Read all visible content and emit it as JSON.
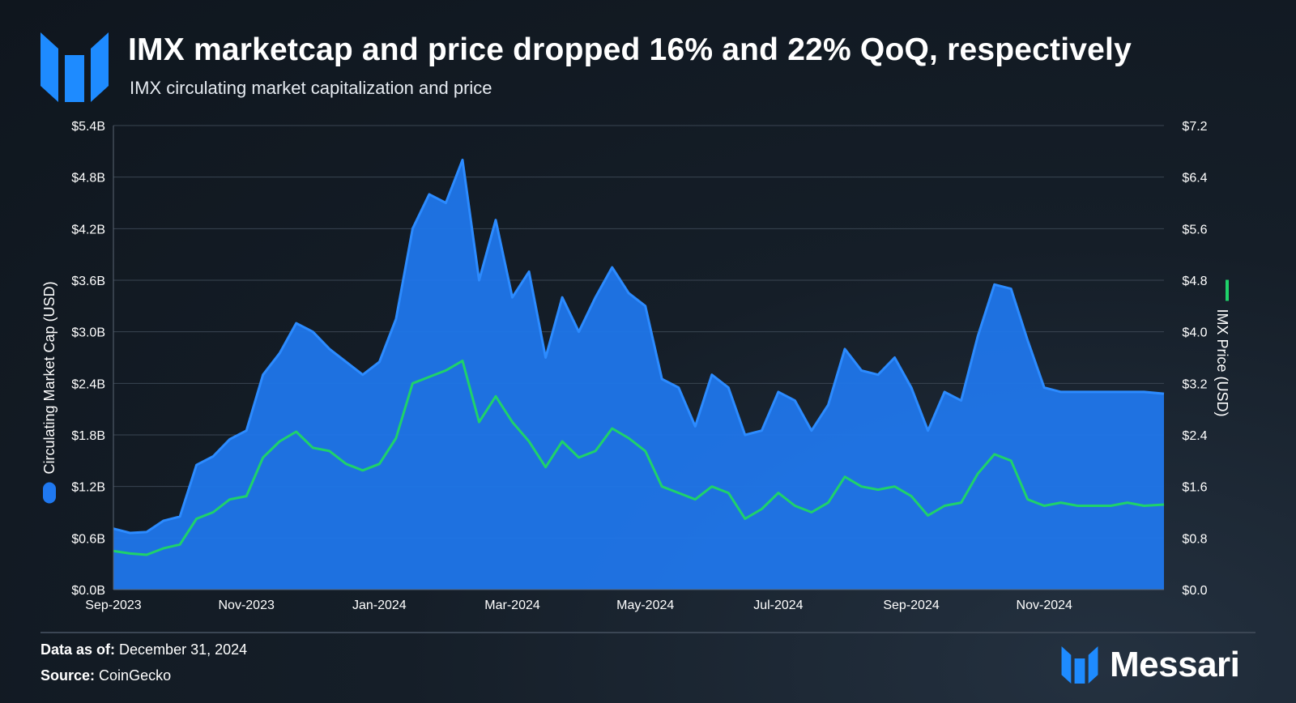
{
  "title": "IMX marketcap and price dropped 16% and 22% QoQ, respectively",
  "subtitle": "IMX circulating market capitalization and price",
  "footer": {
    "data_label": "Data as of:",
    "data_value": "December 31, 2024",
    "source_label": "Source:",
    "source_value": "CoinGecko"
  },
  "brand": {
    "name": "Messari"
  },
  "colors": {
    "marketcap": "#1f78f0",
    "marketcap_line": "#2c8bff",
    "price": "#1fd26a",
    "grid": "#3a4552"
  },
  "chart_data": {
    "type": "area+line",
    "title": "IMX circulating market capitalization and price",
    "x_ticks": [
      "Sep-2023",
      "Nov-2023",
      "Jan-2024",
      "Mar-2024",
      "May-2024",
      "Jul-2024",
      "Sep-2024",
      "Nov-2024"
    ],
    "y_left": {
      "label": "Circulating Market Cap (USD)",
      "range": [
        0,
        5.4
      ],
      "ticks": [
        "$0.0B",
        "$0.6B",
        "$1.2B",
        "$1.8B",
        "$2.4B",
        "$3.0B",
        "$3.6B",
        "$4.2B",
        "$4.8B",
        "$5.4B"
      ]
    },
    "y_right": {
      "label": "IMX Price (USD)",
      "range": [
        0,
        7.2
      ],
      "ticks": [
        "$0.0",
        "$0.8",
        "$1.6",
        "$2.4",
        "$3.2",
        "$4.0",
        "$4.8",
        "$5.6",
        "$6.4",
        "$7.2"
      ]
    },
    "x_months_range": [
      0,
      15.8
    ],
    "series": [
      {
        "name": "Circulating Market Cap (USD)",
        "axis": "left",
        "unit": "billion USD",
        "x_months": [
          0,
          0.25,
          0.5,
          0.75,
          1.0,
          1.25,
          1.5,
          1.75,
          2.0,
          2.25,
          2.5,
          2.75,
          3.0,
          3.25,
          3.5,
          3.75,
          4.0,
          4.25,
          4.5,
          4.75,
          5.0,
          5.25,
          5.5,
          5.75,
          6.0,
          6.25,
          6.5,
          6.75,
          7.0,
          7.25,
          7.5,
          7.75,
          8.0,
          8.25,
          8.5,
          8.75,
          9.0,
          9.25,
          9.5,
          9.75,
          10.0,
          10.25,
          10.5,
          10.75,
          11.0,
          11.25,
          11.5,
          11.75,
          12.0,
          12.25,
          12.5,
          12.75,
          13.0,
          13.25,
          13.5,
          13.75,
          14.0,
          14.25,
          14.5,
          14.75,
          15.0,
          15.25,
          15.5,
          15.8
        ],
        "values": [
          0.71,
          0.66,
          0.67,
          0.8,
          0.85,
          1.45,
          1.55,
          1.75,
          1.85,
          2.5,
          2.75,
          3.1,
          3.0,
          2.8,
          2.65,
          2.5,
          2.65,
          3.15,
          4.2,
          4.6,
          4.5,
          5.0,
          3.6,
          4.3,
          3.4,
          3.7,
          2.7,
          3.4,
          3.0,
          3.4,
          3.75,
          3.45,
          3.3,
          2.45,
          2.35,
          1.9,
          2.5,
          2.35,
          1.8,
          1.85,
          2.3,
          2.2,
          1.85,
          2.15,
          2.8,
          2.55,
          2.5,
          2.7,
          2.35,
          1.85,
          2.3,
          2.2,
          2.95,
          3.55,
          3.5,
          2.9,
          2.35,
          2.3,
          2.3,
          2.3,
          2.3,
          2.3,
          2.3,
          2.28
        ]
      },
      {
        "name": "IMX Price (USD)",
        "axis": "right",
        "unit": "USD",
        "x_months": [
          0,
          0.25,
          0.5,
          0.75,
          1.0,
          1.25,
          1.5,
          1.75,
          2.0,
          2.25,
          2.5,
          2.75,
          3.0,
          3.25,
          3.5,
          3.75,
          4.0,
          4.25,
          4.5,
          4.75,
          5.0,
          5.25,
          5.5,
          5.75,
          6.0,
          6.25,
          6.5,
          6.75,
          7.0,
          7.25,
          7.5,
          7.75,
          8.0,
          8.25,
          8.5,
          8.75,
          9.0,
          9.25,
          9.5,
          9.75,
          10.0,
          10.25,
          10.5,
          10.75,
          11.0,
          11.25,
          11.5,
          11.75,
          12.0,
          12.25,
          12.5,
          12.75,
          13.0,
          13.25,
          13.5,
          13.75,
          14.0,
          14.25,
          14.5,
          14.75,
          15.0,
          15.25,
          15.5,
          15.8
        ],
        "values": [
          0.6,
          0.56,
          0.54,
          0.64,
          0.7,
          1.1,
          1.2,
          1.4,
          1.45,
          2.05,
          2.3,
          2.45,
          2.2,
          2.15,
          1.95,
          1.85,
          1.95,
          2.35,
          3.2,
          3.3,
          3.4,
          3.55,
          2.6,
          3.0,
          2.6,
          2.3,
          1.9,
          2.3,
          2.05,
          2.15,
          2.5,
          2.35,
          2.15,
          1.6,
          1.5,
          1.4,
          1.6,
          1.5,
          1.1,
          1.25,
          1.5,
          1.3,
          1.2,
          1.35,
          1.75,
          1.6,
          1.55,
          1.6,
          1.45,
          1.15,
          1.3,
          1.35,
          1.8,
          2.1,
          2.0,
          1.4,
          1.3,
          1.35,
          1.3,
          1.3,
          1.3,
          1.35,
          1.3,
          1.32
        ]
      }
    ]
  }
}
